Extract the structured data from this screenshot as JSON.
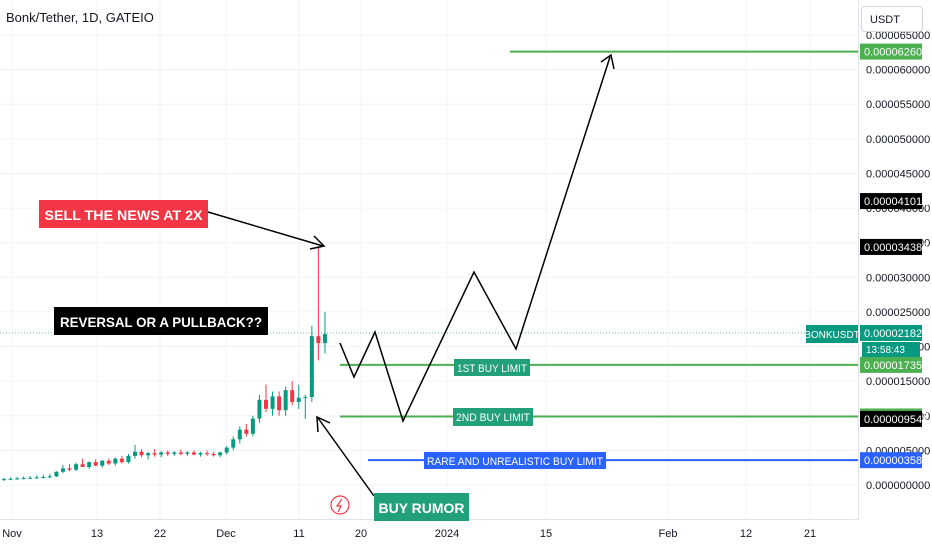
{
  "chart": {
    "title": "Bonk/Tether, 1D, GATEIO",
    "currency_label": "USDT",
    "symbol_label": "BONKUSDT",
    "countdown": "13:58:43"
  },
  "annotations": {
    "sell_news": "SELL THE NEWS AT 2X",
    "reversal": "REVERSAL OR A PULLBACK??",
    "buy_rumor": "BUY RUMOR",
    "first_buy": "1ST BUY LIMIT",
    "second_buy": "2ND BUY LIMIT",
    "rare_buy": "RARE AND UNREALISTIC BUY LIMIT"
  },
  "colors": {
    "up": "#089981",
    "down": "#f23645",
    "green_line": "#4caf50",
    "blue_line": "#2962ff",
    "sell_label_bg": "#f23645",
    "dark_label_bg": "#000000",
    "teal_label_bg": "#22a079"
  },
  "chart_data": {
    "type": "candlestick",
    "x_ticks": [
      "Nov",
      "13",
      "22",
      "Dec",
      "11",
      "20",
      "2024",
      "15",
      "Feb",
      "12",
      "21"
    ],
    "y_ticks": [
      "0.000065000",
      "0.000060000",
      "0.000055000",
      "0.000050000",
      "0.000045000",
      "0.000040000",
      "0.000035000",
      "0.000030000",
      "0.000025000",
      "0.000020000",
      "0.000015000",
      "0.000010000",
      "0.000005000",
      "0.000000000"
    ],
    "ylim": [
      0.0,
      6.5e-05
    ],
    "price_labels": [
      {
        "value": "0.000062606",
        "bg": "#4caf50",
        "color": "#ffffff"
      },
      {
        "value": "0.000041012",
        "bg": "#000000",
        "color": "#ffffff"
      },
      {
        "value": "0.000034387",
        "bg": "#000000",
        "color": "#ffffff"
      },
      {
        "value": "0.000021824",
        "bg": "#089981",
        "color": "#ffffff"
      },
      {
        "value": "0.000017350",
        "bg": "#4caf50",
        "color": "#ffffff"
      },
      {
        "value": "0.000009897",
        "bg": "#4caf50",
        "color": "#ffffff"
      },
      {
        "value": "0.000009542",
        "bg": "#000000",
        "color": "#ffffff"
      },
      {
        "value": "0.000003589",
        "bg": "#2962ff",
        "color": "#ffffff"
      }
    ],
    "levels": [
      {
        "name": "target",
        "value": 6.2606e-05
      },
      {
        "name": "1st buy limit",
        "value": 1.735e-05
      },
      {
        "name": "2nd buy limit",
        "value": 9.897e-06
      },
      {
        "name": "rare buy limit",
        "value": 3.589e-06
      }
    ],
    "candles": [
      {
        "o": 8e-07,
        "h": 1.05e-06,
        "l": 6e-07,
        "c": 8.5e-07
      },
      {
        "o": 8.5e-07,
        "h": 1.1e-06,
        "l": 7e-07,
        "c": 9e-07
      },
      {
        "o": 9e-07,
        "h": 1.2e-06,
        "l": 7.5e-07,
        "c": 9.5e-07
      },
      {
        "o": 9.5e-07,
        "h": 1.25e-06,
        "l": 8e-07,
        "c": 1e-06
      },
      {
        "o": 1e-06,
        "h": 1.3e-06,
        "l": 8.5e-07,
        "c": 1.05e-06
      },
      {
        "o": 1.05e-06,
        "h": 1.4e-06,
        "l": 9e-07,
        "c": 1.1e-06
      },
      {
        "o": 1.1e-06,
        "h": 1.5e-06,
        "l": 9.5e-07,
        "c": 1.15e-06
      },
      {
        "o": 1.15e-06,
        "h": 1.6e-06,
        "l": 1e-06,
        "c": 1.25e-06
      },
      {
        "o": 1.25e-06,
        "h": 2e-06,
        "l": 1.15e-06,
        "c": 1.9e-06
      },
      {
        "o": 1.9e-06,
        "h": 2.9e-06,
        "l": 1.7e-06,
        "c": 2.4e-06
      },
      {
        "o": 2.4e-06,
        "h": 3e-06,
        "l": 2e-06,
        "c": 2.2e-06
      },
      {
        "o": 2.2e-06,
        "h": 3.2e-06,
        "l": 2e-06,
        "c": 3e-06
      },
      {
        "o": 3e-06,
        "h": 3.8e-06,
        "l": 2.6e-06,
        "c": 2.6e-06
      },
      {
        "o": 2.6e-06,
        "h": 3.4e-06,
        "l": 2.3e-06,
        "c": 3.3e-06
      },
      {
        "o": 3.3e-06,
        "h": 3.7e-06,
        "l": 2.7e-06,
        "c": 2.8e-06
      },
      {
        "o": 2.8e-06,
        "h": 3.6e-06,
        "l": 2.5e-06,
        "c": 3.5e-06
      },
      {
        "o": 3.5e-06,
        "h": 3.8e-06,
        "l": 2.9e-06,
        "c": 3.1e-06
      },
      {
        "o": 3.1e-06,
        "h": 4e-06,
        "l": 2.8e-06,
        "c": 3.8e-06
      },
      {
        "o": 3.8e-06,
        "h": 4.2e-06,
        "l": 3.1e-06,
        "c": 3.3e-06
      },
      {
        "o": 3.3e-06,
        "h": 4.5e-06,
        "l": 3.1e-06,
        "c": 4.2e-06
      },
      {
        "o": 4.2e-06,
        "h": 5.8e-06,
        "l": 3.8e-06,
        "c": 4.8e-06
      },
      {
        "o": 4.8e-06,
        "h": 5.2e-06,
        "l": 4e-06,
        "c": 4.3e-06
      },
      {
        "o": 4.3e-06,
        "h": 4.8e-06,
        "l": 3.7e-06,
        "c": 4.6e-06
      },
      {
        "o": 4.6e-06,
        "h": 5.2e-06,
        "l": 4.1e-06,
        "c": 4.4e-06
      },
      {
        "o": 4.4e-06,
        "h": 4.9e-06,
        "l": 4e-06,
        "c": 4.7e-06
      },
      {
        "o": 4.7e-06,
        "h": 5e-06,
        "l": 4.2e-06,
        "c": 4.5e-06
      },
      {
        "o": 4.5e-06,
        "h": 4.9e-06,
        "l": 4.2e-06,
        "c": 4.7e-06
      },
      {
        "o": 4.7e-06,
        "h": 5.1e-06,
        "l": 4.3e-06,
        "c": 4.5e-06
      },
      {
        "o": 4.5e-06,
        "h": 4.9e-06,
        "l": 4.2e-06,
        "c": 4.7e-06
      },
      {
        "o": 4.7e-06,
        "h": 5e-06,
        "l": 4.3e-06,
        "c": 4.4e-06
      },
      {
        "o": 4.4e-06,
        "h": 4.8e-06,
        "l": 4.1e-06,
        "c": 4.6e-06
      },
      {
        "o": 4.6e-06,
        "h": 5e-06,
        "l": 4.2e-06,
        "c": 4.5e-06
      },
      {
        "o": 4.5e-06,
        "h": 4.8e-06,
        "l": 4.1e-06,
        "c": 4.3e-06
      },
      {
        "o": 4.3e-06,
        "h": 4.8e-06,
        "l": 4e-06,
        "c": 4.7e-06
      },
      {
        "o": 4.7e-06,
        "h": 5.6e-06,
        "l": 4.4e-06,
        "c": 5.4e-06
      },
      {
        "o": 5.4e-06,
        "h": 7e-06,
        "l": 5e-06,
        "c": 6.6e-06
      },
      {
        "o": 6.6e-06,
        "h": 8.5e-06,
        "l": 6e-06,
        "c": 8e-06
      },
      {
        "o": 8e-06,
        "h": 8.8e-06,
        "l": 7e-06,
        "c": 7.4e-06
      },
      {
        "o": 7.4e-06,
        "h": 1e-05,
        "l": 7e-06,
        "c": 9.6e-06
      },
      {
        "o": 9.6e-06,
        "h": 1.3e-05,
        "l": 9e-06,
        "c": 1.23e-05
      },
      {
        "o": 1.23e-05,
        "h": 1.45e-05,
        "l": 1.05e-05,
        "c": 1.1e-05
      },
      {
        "o": 1.1e-05,
        "h": 1.35e-05,
        "l": 1e-05,
        "c": 1.28e-05
      },
      {
        "o": 1.28e-05,
        "h": 1.35e-05,
        "l": 1e-05,
        "c": 1.08e-05
      },
      {
        "o": 1.08e-05,
        "h": 1.42e-05,
        "l": 1e-05,
        "c": 1.37e-05
      },
      {
        "o": 1.37e-05,
        "h": 1.5e-05,
        "l": 1.15e-05,
        "c": 1.2e-05
      },
      {
        "o": 1.2e-05,
        "h": 1.45e-05,
        "l": 1.1e-05,
        "c": 1.26e-05
      },
      {
        "o": 1.26e-05,
        "h": 1.3e-05,
        "l": 9.54e-06,
        "c": 1.27e-05
      },
      {
        "o": 1.27e-05,
        "h": 2.3e-05,
        "l": 1.2e-05,
        "c": 2.15e-05
      },
      {
        "o": 2.15e-05,
        "h": 3.439e-05,
        "l": 1.8e-05,
        "c": 2.05e-05
      },
      {
        "o": 2.05e-05,
        "h": 2.5e-05,
        "l": 1.9e-05,
        "c": 2.182e-05
      }
    ]
  }
}
